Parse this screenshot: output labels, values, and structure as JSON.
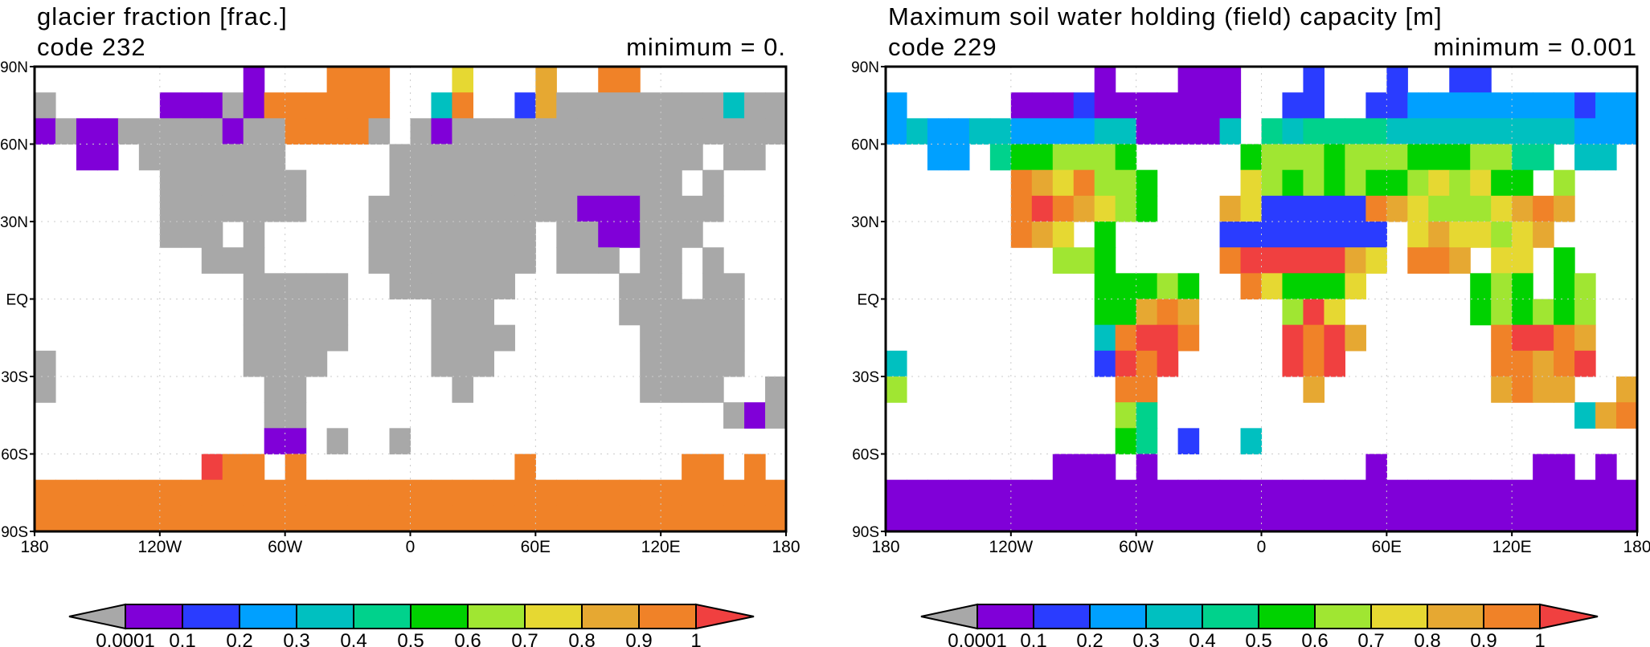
{
  "colors": {
    "under": "#a8a8a8",
    "over": "#f04040",
    "bins": [
      "#8000d8",
      "#2a3cff",
      "#00a0ff",
      "#00c0c0",
      "#00d28c",
      "#00d200",
      "#a0e632",
      "#e6d832",
      "#e6a832",
      "#f08228"
    ]
  },
  "colorbar_labels": [
    "0.0001",
    "0.1",
    "0.2",
    "0.3",
    "0.4",
    "0.5",
    "0.6",
    "0.7",
    "0.8",
    "0.9",
    "1"
  ],
  "axes": {
    "lon_labels": [
      "180",
      "120W",
      "60W",
      "0",
      "60E",
      "120E",
      "180"
    ],
    "lat_labels": [
      "90N",
      "60N",
      "30N",
      "EQ",
      "30S",
      "60S",
      "90S"
    ]
  },
  "chart_data": [
    {
      "type": "heatmap",
      "title": "glacier fraction [frac.]",
      "code": "code 232",
      "minimum": "minimum = 0.",
      "grid_resolution_deg": 10,
      "legend_codes": {
        ".": "missing",
        "g": "<0.0001",
        "0-9": "bin index",
        "r": ">1"
      },
      "rows_90N_to_90S": [
        "..........0...999...7...8..99.......",
        "g.....000g0999999..39..18gggggggg3gg",
        "0g00ggggg0gg9999g.g0gggggggggggggggg",
        "..00.ggggggg.....ggggggggggggggg.gg.",
        "......ggggggg....gggggggggggggg.g...",
        "......ggggggg...gggggggggg000gggg...",
        "......ggg.g.....gggggggg.gg00ggg....",
        "........ggg.....gggggggg.ggg.gg.g...",
        "..........ggggg..gggggg.....ggg.gg..",
        "..........ggggg....ggg......gggggg..",
        "..........ggggg....gggg......ggggg..",
        "g.........gggg.....ggg.......ggggg..",
        "g..........gg.......g........gggg..g",
        "...........gg....................g0g",
        "...........00.g..g..................",
        "........r99.9..........9.......99.9.",
        "999999999999999999999999999999999999",
        "999999999999999999999999999999999999"
      ]
    },
    {
      "type": "heatmap",
      "title": "Maximum soil water holding (field) capacity  [m]",
      "code": "code 229",
      "minimum": "minimum = 0.001",
      "grid_resolution_deg": 10,
      "legend_codes": {
        ".": "missing",
        "g": "<0.0001",
        "0-9": "bin index",
        "r": ">1"
      },
      "rows_90N_to_90S": [
        "..........0...000...1...1..11.......",
        "2.....00010000000..11..11222222221222",
        "23223322223300003.434444333333333222",
        "..22.4556665.....566656665556644.33.",
        "......9879665....76565655676755.6...",
        "......9r98765...87111119876667898...",
        "......987.5.....11111111.7877678....",
        "........665.....9rrrrr87.998.77.5...",
        "..........55565..975557.....565.56..",
        "..........55898....6r7......565656..",
        "..........39rr9....r9r8......9rr98..",
        "3.........1r9r.....r9r.......9989r..",
        "6..........99.......8........8988..8",
        "...........64....................389",
        "...........54.1..3..................",
        "........000.0..........0.......00.0.",
        "000000000000000000000000000000000000",
        "000000000000000000000000000000000000"
      ]
    }
  ]
}
